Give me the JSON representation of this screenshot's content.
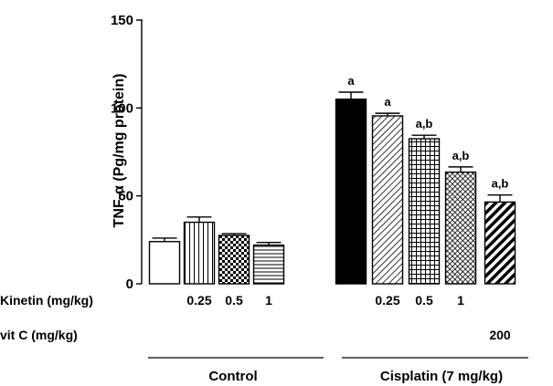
{
  "chart_data": {
    "type": "bar",
    "ylabel": "TNF-α (Pg/mg protein)",
    "ylim": [
      0,
      150
    ],
    "yticks": [
      0,
      50,
      100,
      150
    ],
    "grid": false,
    "bars": [
      {
        "value": 24,
        "error": 2,
        "pattern": "white",
        "sig": ""
      },
      {
        "value": 35,
        "error": 3,
        "pattern": "vertical-lines",
        "sig": ""
      },
      {
        "value": 27.5,
        "error": 1,
        "pattern": "checker",
        "sig": ""
      },
      {
        "value": 22,
        "error": 1.5,
        "pattern": "horizontal-lines",
        "sig": ""
      },
      {
        "value": 105,
        "error": 4,
        "pattern": "black",
        "sig": "a"
      },
      {
        "value": 95.5,
        "error": 1.5,
        "pattern": "diag-thin",
        "sig": "a"
      },
      {
        "value": 82.5,
        "error": 2,
        "pattern": "grid",
        "sig": "a,b"
      },
      {
        "value": 63.5,
        "error": 3,
        "pattern": "fine-grid",
        "sig": "a,b"
      },
      {
        "value": 46.5,
        "error": 4,
        "pattern": "diag-thick",
        "sig": "a,b"
      }
    ],
    "rows": [
      {
        "label": "Kinetin (mg/kg)",
        "values": [
          "",
          "0.25",
          "0.5",
          "1",
          "",
          "0.25",
          "0.5",
          "1",
          ""
        ]
      },
      {
        "label": "vit C (mg/kg)",
        "values": [
          "",
          "",
          "",
          "",
          "",
          "",
          "",
          "",
          "200"
        ]
      }
    ],
    "groups": [
      {
        "label": "Control"
      },
      {
        "label": "Cisplatin (7 mg/kg)"
      }
    ]
  }
}
